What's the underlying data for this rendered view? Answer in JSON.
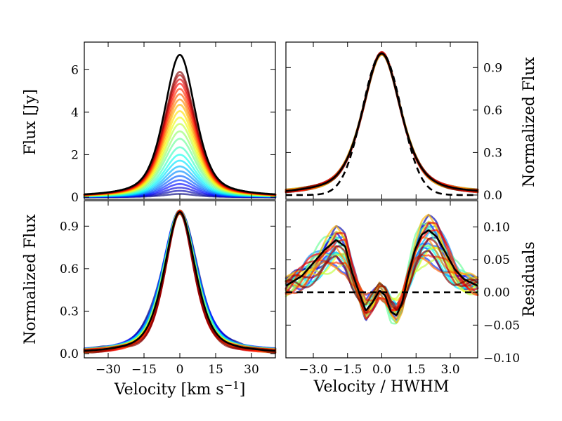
{
  "chart_data": [
    {
      "id": "tl",
      "type": "line",
      "ylabel": "Flux [Jy]",
      "xlim": [
        -40,
        40
      ],
      "ylim": [
        -0.1,
        7.3
      ],
      "yticks": [
        0,
        2,
        4,
        6
      ],
      "ytick_labels": [
        "0",
        "2",
        "4",
        "6"
      ],
      "line_profile": {
        "shape": "lorentzian-gaussian blend",
        "hwhm": 8.0,
        "peak_velocity": 0
      },
      "series_peaks": [
        0.15,
        0.3,
        0.45,
        0.62,
        0.8,
        1.0,
        1.22,
        1.45,
        1.72,
        2.0,
        2.35,
        2.75,
        3.1,
        3.45,
        3.75,
        4.05,
        4.35,
        4.6,
        4.85,
        5.1,
        5.35,
        5.55,
        5.75,
        5.9
      ],
      "series_colormap": "jet (blue to red)",
      "mean_peak": 6.7,
      "mean_color": "#000000"
    },
    {
      "id": "tr",
      "type": "line",
      "ylabel": "Normalized Flux",
      "xlim": [
        -4.2,
        4.2
      ],
      "ylim": [
        -0.03,
        1.08
      ],
      "yticks": [
        0.0,
        0.3,
        0.6,
        0.9
      ],
      "ytick_labels": [
        "0.0",
        "0.3",
        "0.6",
        "0.9"
      ],
      "reference": "gaussian (dashed)"
    },
    {
      "id": "bl",
      "type": "line",
      "xlabel": "Velocity [km s",
      "xlabel_sup": "−1",
      "xlabel_end": "]",
      "ylabel": "Normalized Flux",
      "xlim": [
        -40,
        40
      ],
      "ylim": [
        -0.03,
        1.08
      ],
      "xticks": [
        -30,
        -15,
        0,
        15,
        30
      ],
      "xtick_labels": [
        "−30",
        "−15",
        "0",
        "15",
        "30"
      ],
      "yticks": [
        0.0,
        0.3,
        0.6,
        0.9
      ],
      "ytick_labels": [
        "0.0",
        "0.3",
        "0.6",
        "0.9"
      ]
    },
    {
      "id": "br",
      "type": "line",
      "xlabel": "Velocity / HWHM",
      "ylabel": "Residuals",
      "xlim": [
        -4.2,
        4.2
      ],
      "ylim": [
        -0.1,
        0.14
      ],
      "xticks": [
        -3.0,
        -1.5,
        0.0,
        1.5,
        3.0
      ],
      "xtick_labels": [
        "−3.0",
        "−1.5",
        "0.0",
        "1.5",
        "3.0"
      ],
      "yticks": [
        -0.1,
        -0.05,
        0.0,
        0.05,
        0.1
      ],
      "ytick_labels": [
        "−0.10",
        "−0.05",
        "0.00",
        "0.05",
        "0.10"
      ],
      "mean_residual_points": [
        [
          -4.2,
          0.01
        ],
        [
          -3.5,
          0.025
        ],
        [
          -3.0,
          0.045
        ],
        [
          -2.5,
          0.065
        ],
        [
          -2.0,
          0.08
        ],
        [
          -1.6,
          0.07
        ],
        [
          -1.3,
          0.03
        ],
        [
          -1.0,
          0.0
        ],
        [
          -0.7,
          -0.028
        ],
        [
          -0.4,
          -0.015
        ],
        [
          -0.1,
          0.003
        ],
        [
          0.15,
          -0.005
        ],
        [
          0.4,
          -0.03
        ],
        [
          0.65,
          -0.035
        ],
        [
          0.9,
          -0.015
        ],
        [
          1.15,
          0.025
        ],
        [
          1.45,
          0.065
        ],
        [
          1.75,
          0.088
        ],
        [
          2.05,
          0.095
        ],
        [
          2.4,
          0.085
        ],
        [
          2.8,
          0.06
        ],
        [
          3.2,
          0.035
        ],
        [
          3.6,
          0.02
        ],
        [
          4.2,
          0.01
        ]
      ],
      "reference_value": 0.0
    }
  ]
}
